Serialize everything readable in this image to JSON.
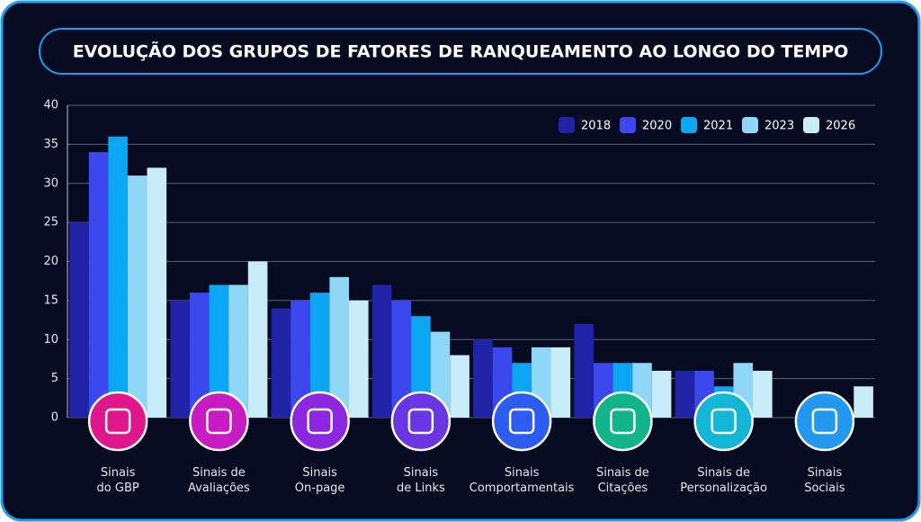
{
  "chart_data": {
    "type": "bar",
    "title": "EVOLUÇÃO DOS GRUPOS DE FATORES DE RANQUEAMENTO AO LONGO DO TEMPO",
    "categories": [
      [
        "Sinais",
        "do GBP"
      ],
      [
        "Sinais de",
        "Avaliações"
      ],
      [
        "Sinais",
        "On-page"
      ],
      [
        "Sinais",
        "de Links"
      ],
      [
        "Sinais",
        "Comportamentais"
      ],
      [
        "Sinais de",
        "Citações"
      ],
      [
        "Sinais de",
        "Personalização"
      ],
      [
        "Sinais",
        "Sociais"
      ]
    ],
    "series": [
      {
        "name": "2018",
        "color": "#1f23a6",
        "values": [
          25,
          15,
          14,
          17,
          10,
          12,
          6,
          null
        ]
      },
      {
        "name": "2020",
        "color": "#3a48ee",
        "values": [
          34,
          16,
          15,
          15,
          9,
          7,
          6,
          null
        ]
      },
      {
        "name": "2021",
        "color": "#0ba6f4",
        "values": [
          36,
          17,
          16,
          13,
          7,
          7,
          4,
          null
        ]
      },
      {
        "name": "2023",
        "color": "#8fd6f7",
        "values": [
          31,
          17,
          18,
          11,
          9,
          7,
          7,
          null
        ]
      },
      {
        "name": "2026",
        "color": "#c9ecfb",
        "values": [
          32,
          20,
          15,
          8,
          9,
          6,
          6,
          4
        ]
      }
    ],
    "ylim": [
      0,
      40
    ],
    "yticks": [
      0,
      5,
      10,
      15,
      20,
      25,
      30,
      35,
      40
    ],
    "grid": true,
    "legend": "top-right"
  }
}
